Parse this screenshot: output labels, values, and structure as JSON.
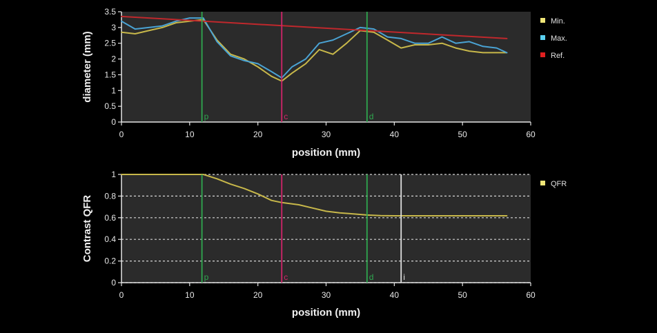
{
  "colors": {
    "background": "#000000",
    "plot_bg": "#2b2b2b",
    "min": "#c8b84a",
    "max": "#4aa3d4",
    "ref": "#c0282c",
    "qfr": "#c8b84a",
    "marker_p": "#2fa84f",
    "marker_c": "#d1246a",
    "marker_d": "#2fa84f",
    "marker_i": "#e0e0e0",
    "legend_min": "#f0e678",
    "legend_max": "#5ad0f0",
    "legend_ref": "#e02020",
    "legend_qfr": "#f0e678"
  },
  "chart_data": [
    {
      "type": "line",
      "xlabel": "position (mm)",
      "ylabel": "diameter (mm)",
      "xlim": [
        0,
        60
      ],
      "ylim": [
        0,
        3.5
      ],
      "xticks": [
        "0",
        "10",
        "20",
        "30",
        "40",
        "50",
        "60"
      ],
      "yticks": [
        "0",
        "0.5",
        "1",
        "1.5",
        "2",
        "2.5",
        "3",
        "3.5"
      ],
      "grid": false,
      "legend_position": "right",
      "series": [
        {
          "name": "Min.",
          "color_key": "min",
          "x": [
            0,
            2,
            4,
            6,
            8,
            10,
            12,
            14,
            16,
            18,
            20,
            22,
            23.5,
            25,
            27,
            29,
            31,
            33,
            35,
            37,
            39,
            41,
            43,
            45,
            47,
            49,
            51,
            53,
            55,
            56.5
          ],
          "y": [
            2.85,
            2.8,
            2.9,
            3.0,
            3.15,
            3.2,
            3.25,
            2.6,
            2.15,
            2.0,
            1.75,
            1.45,
            1.3,
            1.55,
            1.85,
            2.3,
            2.15,
            2.5,
            2.9,
            2.85,
            2.6,
            2.35,
            2.45,
            2.45,
            2.5,
            2.35,
            2.25,
            2.2,
            2.2,
            2.2
          ]
        },
        {
          "name": "Max.",
          "color_key": "max",
          "x": [
            0,
            2,
            4,
            6,
            8,
            10,
            12,
            14,
            16,
            18,
            20,
            22,
            23.5,
            25,
            27,
            29,
            31,
            33,
            35,
            37,
            39,
            41,
            43,
            45,
            47,
            49,
            51,
            53,
            55,
            56.5
          ],
          "y": [
            3.2,
            2.95,
            3.0,
            3.05,
            3.2,
            3.3,
            3.3,
            2.55,
            2.1,
            1.95,
            1.85,
            1.6,
            1.4,
            1.75,
            2.0,
            2.5,
            2.6,
            2.8,
            3.0,
            2.95,
            2.7,
            2.65,
            2.5,
            2.5,
            2.7,
            2.5,
            2.55,
            2.4,
            2.35,
            2.2
          ]
        },
        {
          "name": "Ref.",
          "color_key": "ref",
          "x": [
            0,
            56.5
          ],
          "y": [
            3.35,
            2.65
          ]
        }
      ],
      "markers": [
        {
          "label": "p",
          "x": 11.8,
          "color_key": "marker_p"
        },
        {
          "label": "c",
          "x": 23.5,
          "color_key": "marker_c"
        },
        {
          "label": "d",
          "x": 36.0,
          "color_key": "marker_d"
        }
      ]
    },
    {
      "type": "line",
      "xlabel": "position (mm)",
      "ylabel": "Contrast QFR",
      "xlim": [
        0,
        60
      ],
      "ylim": [
        0,
        1
      ],
      "xticks": [
        "0",
        "10",
        "20",
        "30",
        "40",
        "50",
        "60"
      ],
      "yticks": [
        "0",
        "0.2",
        "0.4",
        "0.6",
        "0.8",
        "1"
      ],
      "grid": true,
      "legend_position": "right",
      "series": [
        {
          "name": "QFR",
          "color_key": "qfr",
          "x": [
            0,
            5,
            10,
            12,
            14,
            16,
            18,
            20,
            22,
            23.5,
            26,
            28,
            30,
            32,
            34,
            36,
            38,
            40,
            45,
            50,
            56.5
          ],
          "y": [
            1.0,
            1.0,
            1.0,
            1.0,
            0.96,
            0.91,
            0.87,
            0.82,
            0.76,
            0.74,
            0.72,
            0.69,
            0.66,
            0.645,
            0.635,
            0.625,
            0.62,
            0.618,
            0.618,
            0.618,
            0.618
          ]
        }
      ],
      "markers": [
        {
          "label": "p",
          "x": 11.8,
          "color_key": "marker_p"
        },
        {
          "label": "c",
          "x": 23.5,
          "color_key": "marker_c"
        },
        {
          "label": "d",
          "x": 36.0,
          "color_key": "marker_d"
        },
        {
          "label": "i",
          "x": 41.0,
          "color_key": "marker_i"
        }
      ]
    }
  ]
}
